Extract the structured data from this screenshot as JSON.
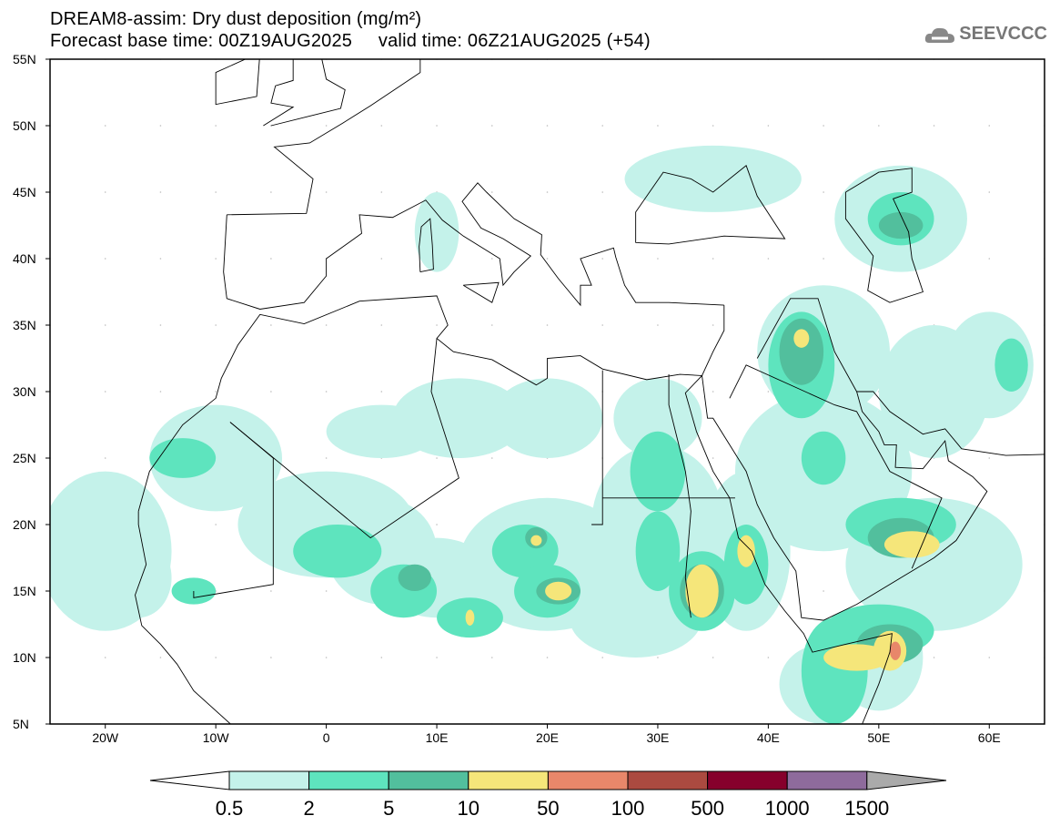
{
  "title": {
    "line1": "DREAM8-assim: Dry dust deposition (mg/m²)",
    "line2": "Forecast base time: 00Z19AUG2025     valid time: 06Z21AUG2025 (+54)"
  },
  "logo": {
    "text": "SEEVCCC",
    "icon": "cloud-icon"
  },
  "axes": {
    "lat_labels": [
      "5N",
      "10N",
      "15N",
      "20N",
      "25N",
      "30N",
      "35N",
      "40N",
      "45N",
      "50N",
      "55N"
    ],
    "lon_labels": [
      "20W",
      "10W",
      "0",
      "10E",
      "20E",
      "30E",
      "40E",
      "50E",
      "60E"
    ]
  },
  "colorbar": {
    "labels": [
      "0.5",
      "2",
      "5",
      "10",
      "50",
      "100",
      "500",
      "1000",
      "1500"
    ],
    "colors": [
      "#c4f2ea",
      "#5ee4be",
      "#52bf9d",
      "#f5e67a",
      "#e8876a",
      "#ab4a40",
      "#86002c",
      "#8e6b9c"
    ],
    "over_color": "#aaaaaa",
    "under_color": "#ffffff"
  }
}
